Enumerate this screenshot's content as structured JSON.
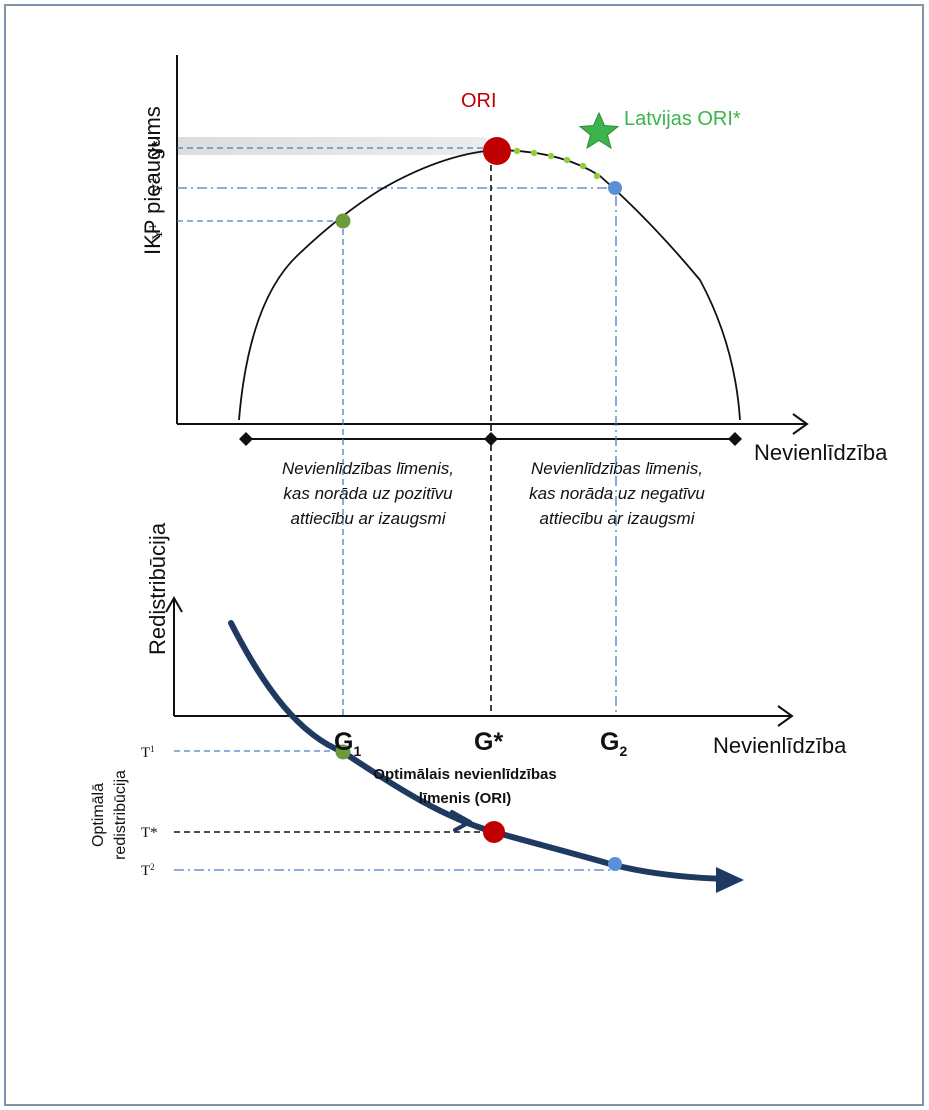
{
  "colors": {
    "frame": "#7f93ad",
    "ori_red": "#c00000",
    "latvia_green": "#3cb44b",
    "point_green": "#6e9a3e",
    "point_blue": "#5b8fd6",
    "curve_dark": "#1f3a60",
    "guide_blue": "#4a7cc7",
    "dots_green": "#8fcf3c"
  },
  "top_chart": {
    "y_axis_label": "IKP pieaugums",
    "x_axis_label": "Nevienlīdzība",
    "ori_label": "ORI",
    "latvia_label": "Latvijas ORI*",
    "y_ticks": {
      "y_star": "Y*",
      "y2_base": "Y",
      "y2_sup": "2",
      "y1_base": "Y",
      "y1_sup": "1"
    },
    "region_left": [
      "Nevienlīdzības līmenis,",
      "kas norāda uz pozitīvu",
      "attiecību ar izaugsmi"
    ],
    "region_right": [
      "Nevienlīdzības līmenis,",
      "kas norāda uz negatīvu",
      "attiecību ar izaugsmi"
    ],
    "star_icon": "star-icon"
  },
  "bottom_chart": {
    "y_axis_label": "Redistribūcija",
    "y_axis_sublabel": [
      "Optimālā",
      "redistribūcija"
    ],
    "x_axis_label": "Nevienlīdzība",
    "t_ticks": {
      "t1_base": "T",
      "t1_sup": "1",
      "tstar": "T*",
      "t2_base": "T",
      "t2_sup": "2"
    },
    "g_ticks": {
      "g1_base": "G",
      "g1_sub": "1",
      "gstar": "G*",
      "g2_base": "G",
      "g2_sub": "2"
    },
    "caption": [
      "Optimālais nevienlīdzības",
      "līmenis (ORI)"
    ]
  }
}
